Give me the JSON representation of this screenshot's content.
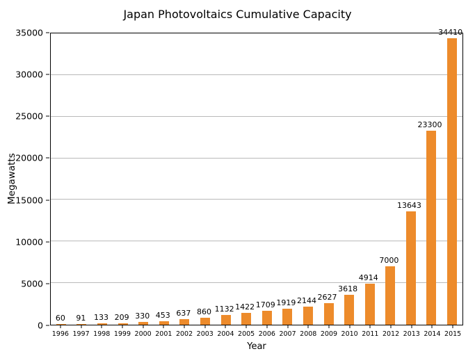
{
  "chart_data": {
    "type": "bar",
    "title": "Japan Photovoltaics Cumulative Capacity",
    "xlabel": "Year",
    "ylabel": "Megawatts",
    "categories": [
      "1996",
      "1997",
      "1998",
      "1999",
      "2000",
      "2001",
      "2002",
      "2003",
      "2004",
      "2005",
      "2006",
      "2007",
      "2008",
      "2009",
      "2010",
      "2011",
      "2012",
      "2013",
      "2014",
      "2015"
    ],
    "values": [
      60,
      91,
      133,
      209,
      330,
      453,
      637,
      860,
      1132,
      1422,
      1709,
      1919,
      2144,
      2627,
      3618,
      4914,
      7000,
      13643,
      23300,
      34410
    ],
    "ylim": [
      0,
      35000
    ],
    "yticks": [
      0,
      5000,
      10000,
      15000,
      20000,
      25000,
      30000,
      35000
    ],
    "bar_color": "#ED8B2B",
    "gridline_color": "#b9b9b9",
    "grid": "horizontal",
    "legend": "none",
    "data_labels": true
  }
}
